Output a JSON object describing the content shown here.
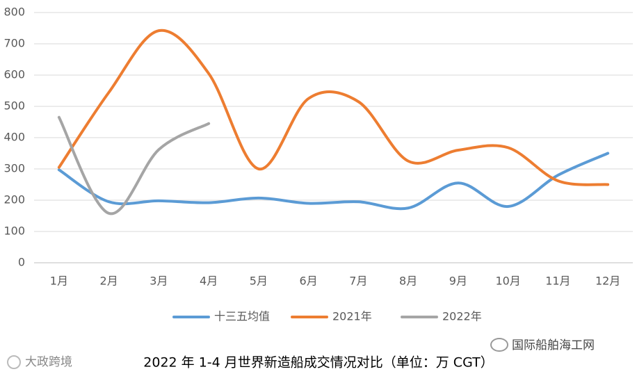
{
  "chart_data": {
    "type": "line",
    "title": "2022 年 1-4 月世界新造船成交情况对比（单位：万 CGT）",
    "categories": [
      "1月",
      "2月",
      "3月",
      "4月",
      "5月",
      "6月",
      "7月",
      "8月",
      "9月",
      "10月",
      "11月",
      "12月"
    ],
    "series": [
      {
        "name": "十三五均值",
        "color": "#5b9bd5",
        "values": [
          297,
          195,
          198,
          192,
          207,
          190,
          195,
          175,
          255,
          180,
          280,
          350
        ]
      },
      {
        "name": "2021年",
        "color": "#ed7d31",
        "values": [
          305,
          545,
          742,
          605,
          300,
          525,
          515,
          325,
          360,
          368,
          262,
          250
        ]
      },
      {
        "name": "2022年",
        "color": "#a5a5a5",
        "values": [
          465,
          158,
          362,
          445,
          null,
          null,
          null,
          null,
          null,
          null,
          null,
          null
        ]
      }
    ],
    "ylim": [
      0,
      800
    ],
    "yticks": [
      0,
      100,
      200,
      300,
      400,
      500,
      600,
      700,
      800
    ],
    "grid": true,
    "smooth": true,
    "legend": "bottom",
    "annotations": [
      "大政跨境",
      "国际船舶海工网"
    ]
  }
}
